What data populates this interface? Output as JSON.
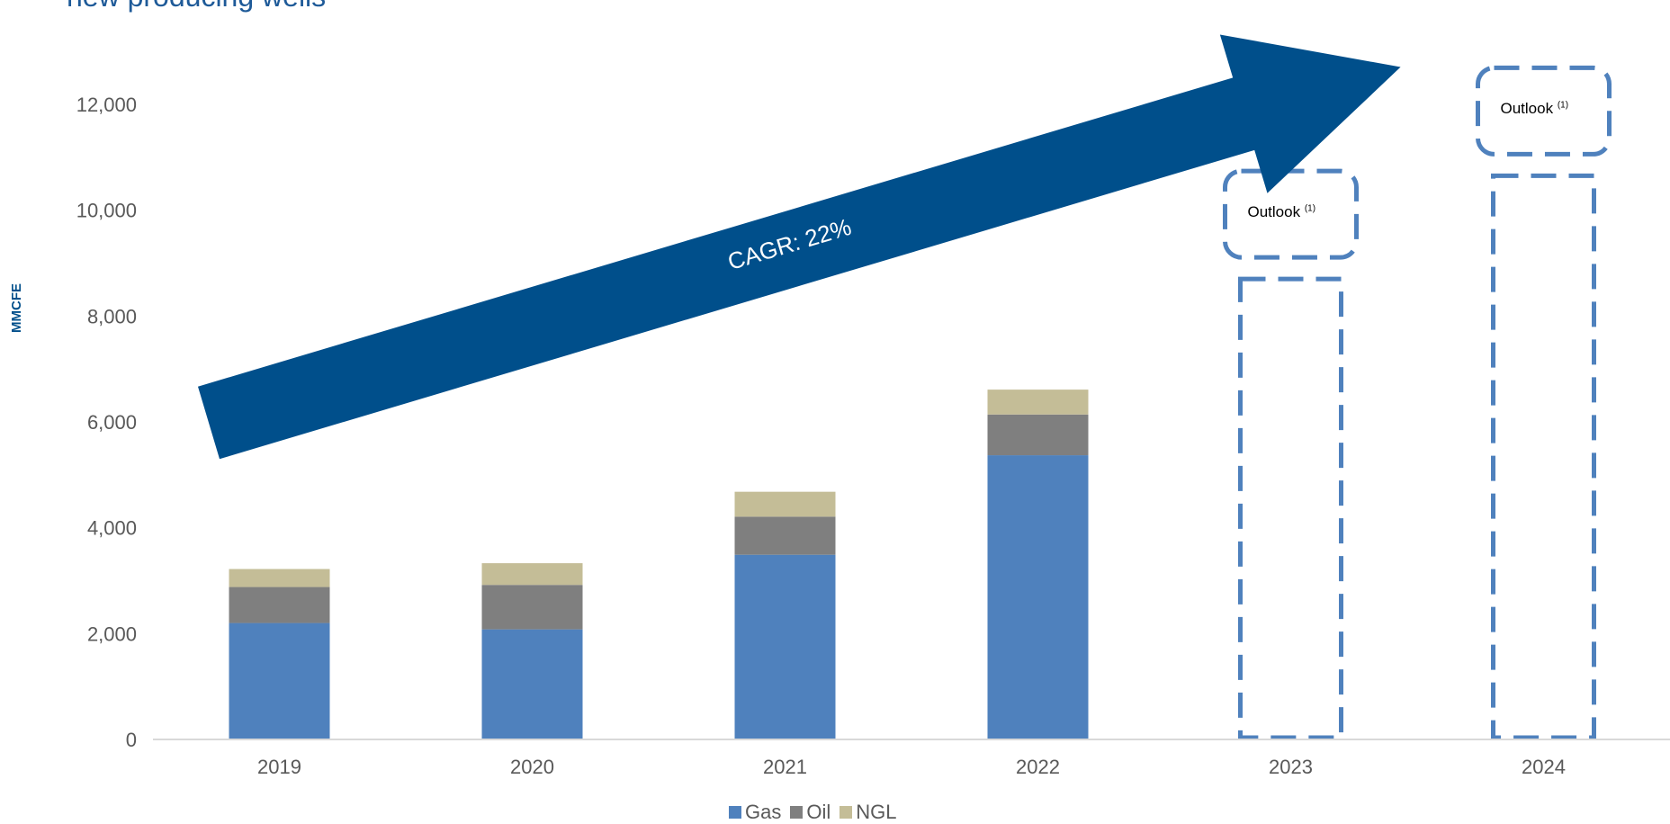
{
  "page": {
    "title_fragment": "new producing wells"
  },
  "colors": {
    "gas": "#4f81bd",
    "oil": "#7f7f7f",
    "ngl": "#c4bd97",
    "arrow": "#004f8b",
    "outline": "#4f81bd"
  },
  "arrow": {
    "label": "CAGR: 22%"
  },
  "outlook_boxes": [
    {
      "year": "2023",
      "label": "Outlook",
      "footnote": "(1)"
    },
    {
      "year": "2024",
      "label": "Outlook",
      "footnote": "(1)"
    }
  ],
  "chart_data": {
    "type": "bar",
    "stacked": true,
    "categories": [
      "2019",
      "2020",
      "2021",
      "2022",
      "2023",
      "2024"
    ],
    "series": [
      {
        "name": "Gas",
        "values": [
          2200,
          2080,
          3490,
          5370,
          null,
          null
        ]
      },
      {
        "name": "Oil",
        "values": [
          680,
          840,
          720,
          770,
          null,
          null
        ]
      },
      {
        "name": "NGL",
        "values": [
          340,
          410,
          470,
          470,
          null,
          null
        ]
      }
    ],
    "outlook_totals": {
      "2023": 8700,
      "2024": 10650
    },
    "ylabel": "MMCFE",
    "ylim": [
      0,
      12000
    ],
    "yticks": [
      0,
      2000,
      4000,
      6000,
      8000,
      10000,
      12000
    ],
    "ytick_labels": [
      "0",
      "2,000",
      "4,000",
      "6,000",
      "8,000",
      "10,000",
      "12,000"
    ],
    "legend": {
      "position": "bottom",
      "entries": [
        "Gas",
        "Oil",
        "NGL"
      ]
    },
    "grid": false
  }
}
